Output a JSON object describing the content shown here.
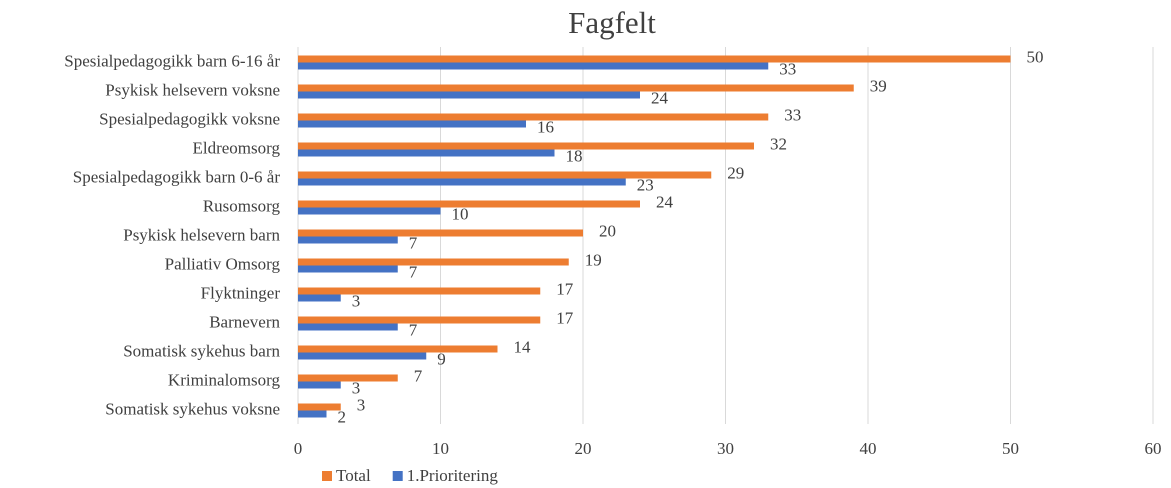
{
  "chart_data": {
    "type": "hbar",
    "title": "Fagfelt",
    "categories": [
      "Spesialpedagogikk barn 6-16 år",
      "Psykisk helsevern voksne",
      "Spesialpedagogikk voksne",
      "Eldreomsorg",
      "Spesialpedagogikk barn 0-6 år",
      "Rusomsorg",
      "Psykisk helsevern barn",
      "Palliativ Omsorg",
      "Flyktninger",
      "Barnevern",
      "Somatisk sykehus barn",
      "Kriminalomsorg",
      "Somatisk sykehus voksne"
    ],
    "series": [
      {
        "name": "Total",
        "color": "#ed7d31",
        "values": [
          50,
          39,
          33,
          32,
          29,
          24,
          20,
          19,
          17,
          17,
          14,
          7,
          3
        ]
      },
      {
        "name": "1.Prioritering",
        "color": "#4472c4",
        "values": [
          33,
          24,
          16,
          18,
          23,
          10,
          7,
          7,
          3,
          7,
          9,
          3,
          2
        ]
      }
    ],
    "xlim": [
      0,
      60
    ],
    "xticks": [
      0,
      10,
      20,
      30,
      40,
      50,
      60
    ],
    "grid": true,
    "legend": "bottom"
  }
}
